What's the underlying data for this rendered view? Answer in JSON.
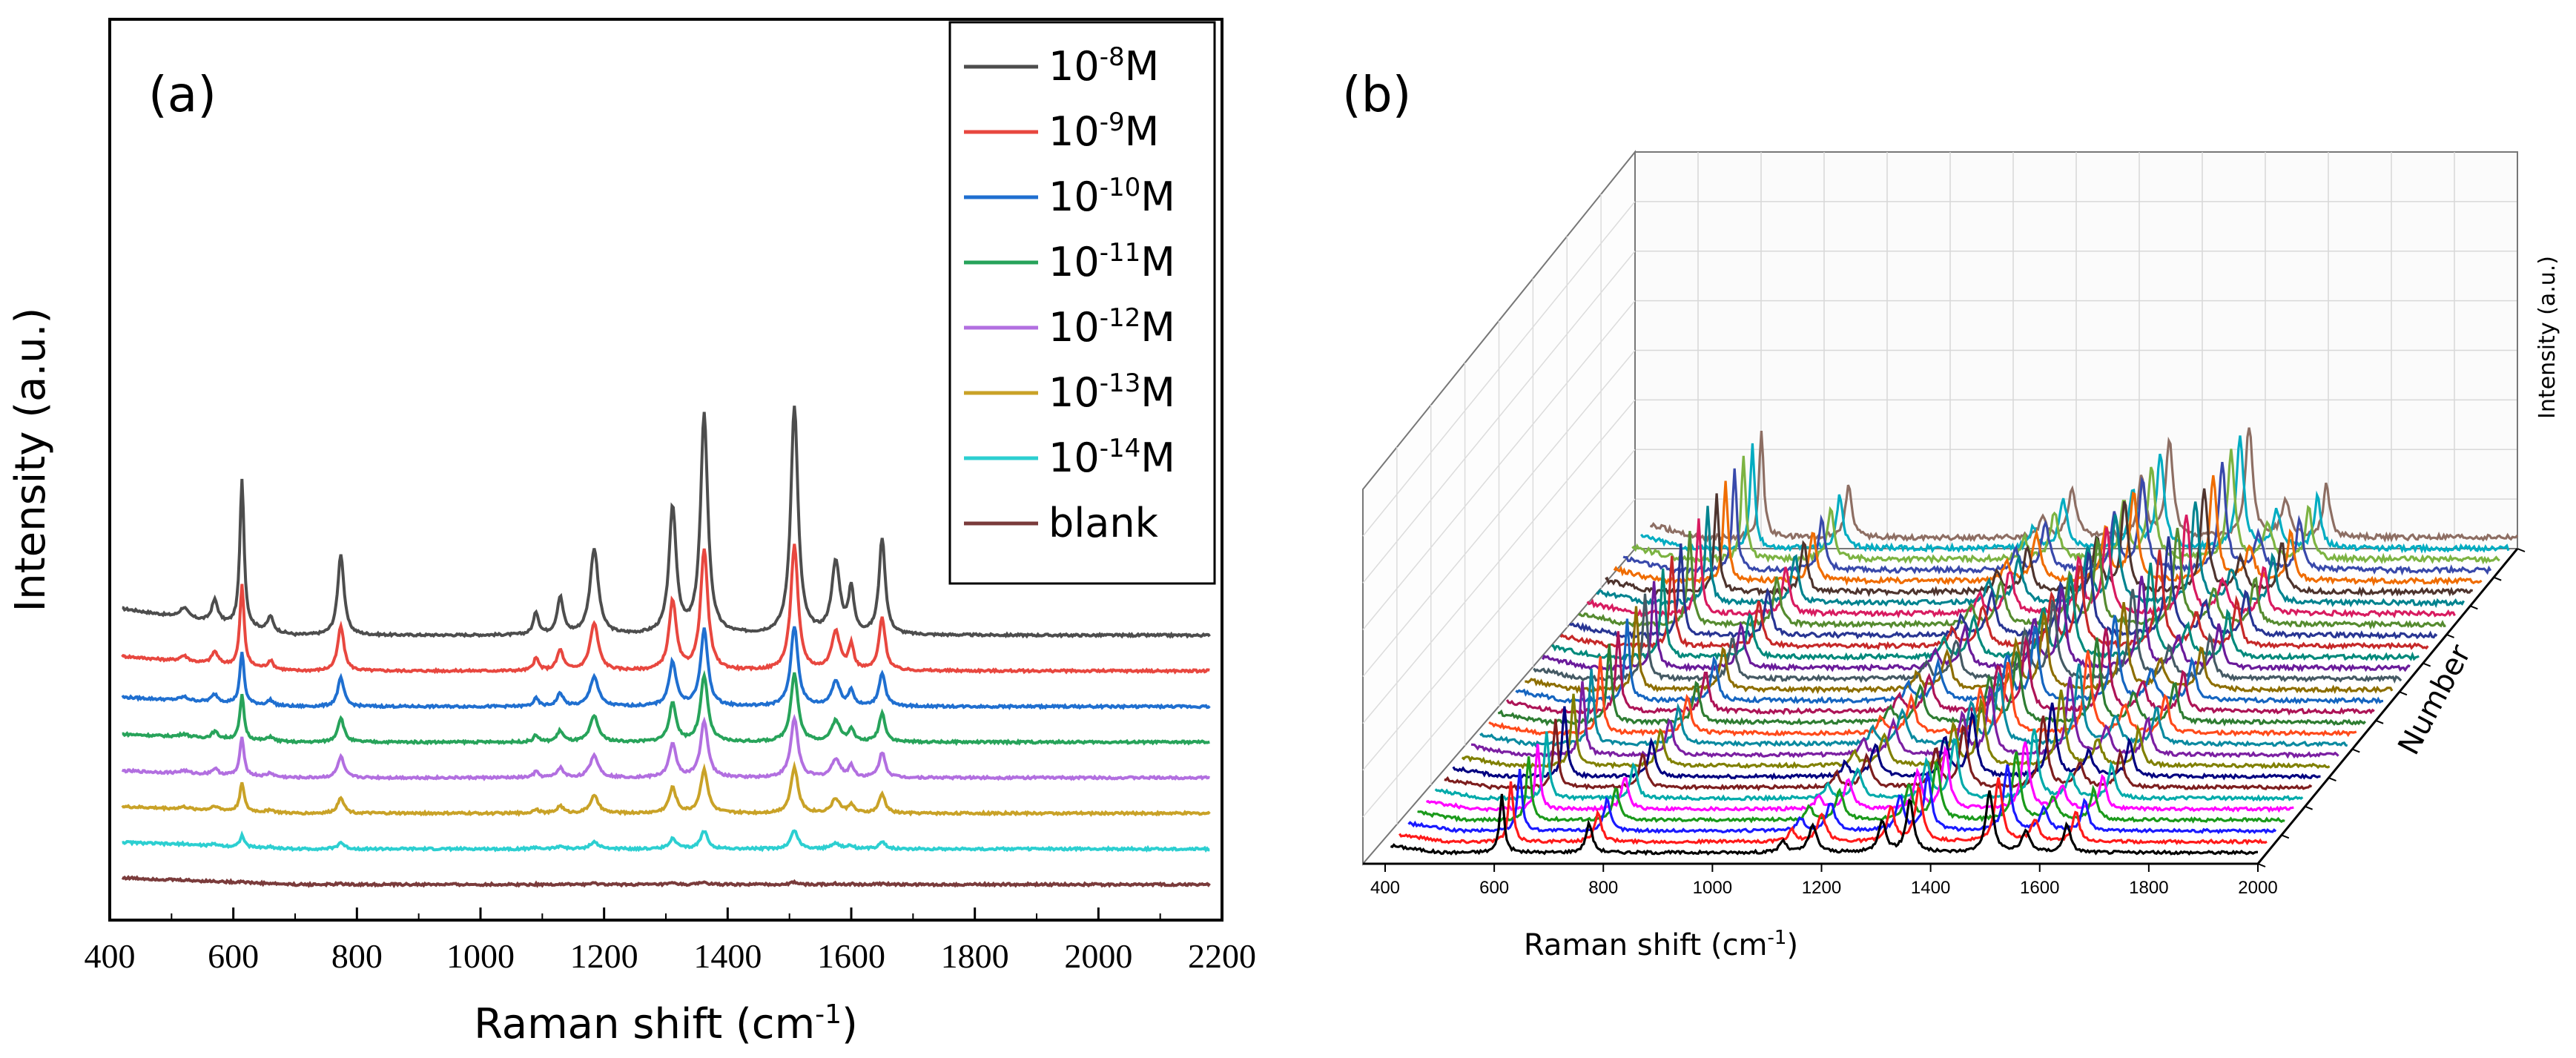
{
  "chart_data": [
    {
      "type": "line",
      "panel_label": "(a)",
      "xlabel": "Raman shift (cm",
      "xlabel_sup": "-1",
      "xlabel_end": ")",
      "ylabel": "Intensity (a.u.)",
      "xlim": [
        400,
        2200
      ],
      "x_ticks": [
        "400",
        "600",
        "800",
        "1000",
        "1200",
        "1400",
        "1600",
        "1800",
        "2000",
        "2200"
      ],
      "legend_position": "top-right",
      "peaks": [
        {
          "center": 614,
          "amp": 1.0,
          "width": 4
        },
        {
          "center": 774,
          "amp": 0.55,
          "width": 6
        },
        {
          "center": 1184,
          "amp": 0.58,
          "width": 8
        },
        {
          "center": 1129,
          "amp": 0.25,
          "width": 6
        },
        {
          "center": 1311,
          "amp": 0.85,
          "width": 7
        },
        {
          "center": 1362,
          "amp": 1.48,
          "width": 7
        },
        {
          "center": 1508,
          "amp": 1.54,
          "width": 7
        },
        {
          "center": 1575,
          "amp": 0.48,
          "width": 8
        },
        {
          "center": 1600,
          "amp": 0.3,
          "width": 5
        },
        {
          "center": 1650,
          "amp": 0.65,
          "width": 6
        },
        {
          "center": 1090,
          "amp": 0.15,
          "width": 5
        },
        {
          "center": 570,
          "amp": 0.15,
          "width": 6
        },
        {
          "center": 660,
          "amp": 0.1,
          "width": 5
        },
        {
          "center": 520,
          "amp": 0.07,
          "width": 8
        }
      ],
      "series": [
        {
          "name": "10",
          "sup": "-8",
          "unit": "M",
          "color": "#4d4d4d",
          "baseline": 7.0,
          "scale": 1.0
        },
        {
          "name": "10",
          "sup": "-9",
          "unit": "M",
          "color": "#e8473f",
          "baseline": 6.0,
          "scale": 0.55
        },
        {
          "name": "10",
          "sup": "-10",
          "unit": "M",
          "color": "#1f6fd0",
          "baseline": 5.0,
          "scale": 0.35
        },
        {
          "name": "10",
          "sup": "-11",
          "unit": "M",
          "color": "#27a35a",
          "baseline": 4.0,
          "scale": 0.3
        },
        {
          "name": "10",
          "sup": "-12",
          "unit": "M",
          "color": "#b26fe0",
          "baseline": 3.0,
          "scale": 0.26
        },
        {
          "name": "10",
          "sup": "-13",
          "unit": "M",
          "color": "#c9a227",
          "baseline": 2.0,
          "scale": 0.2
        },
        {
          "name": "10",
          "sup": "-14",
          "unit": "M",
          "color": "#2ccfd1",
          "baseline": 1.0,
          "scale": 0.08
        },
        {
          "name": "blank",
          "sup": "",
          "unit": "",
          "color": "#7a3b3b",
          "baseline": 0.0,
          "scale": 0.01
        }
      ]
    },
    {
      "type": "line",
      "subtype": "waterfall-3d",
      "panel_label": "(b)",
      "xlabel": "Raman shift (cm",
      "xlabel_sup": "-1",
      "xlabel_end": ")",
      "ylabel": "Number",
      "zlabel": "Intensity (a.u.)",
      "xlim": [
        400,
        2000
      ],
      "x_ticks": [
        "400",
        "600",
        "800",
        "1000",
        "1200",
        "1400",
        "1600",
        "1800",
        "2000"
      ],
      "series_count": 30,
      "series_colors": [
        "#000000",
        "#ff1a1a",
        "#1a1aff",
        "#1a9a1a",
        "#ff00ff",
        "#0aa",
        "#7d1e1e",
        "#000080",
        "#808000",
        "#7b1fa2",
        "#0a8aa0",
        "#ff4a1a",
        "#2e7d32",
        "#ad1457",
        "#1565c0",
        "#8d6e00",
        "#455a64",
        "#6a1b9a",
        "#00897b",
        "#c62828",
        "#283593",
        "#558b2f",
        "#d81b60",
        "#00838f",
        "#4e342e",
        "#ef6c00",
        "#3949ab",
        "#7cb342",
        "#00acc1",
        "#8d6e63"
      ]
    }
  ]
}
